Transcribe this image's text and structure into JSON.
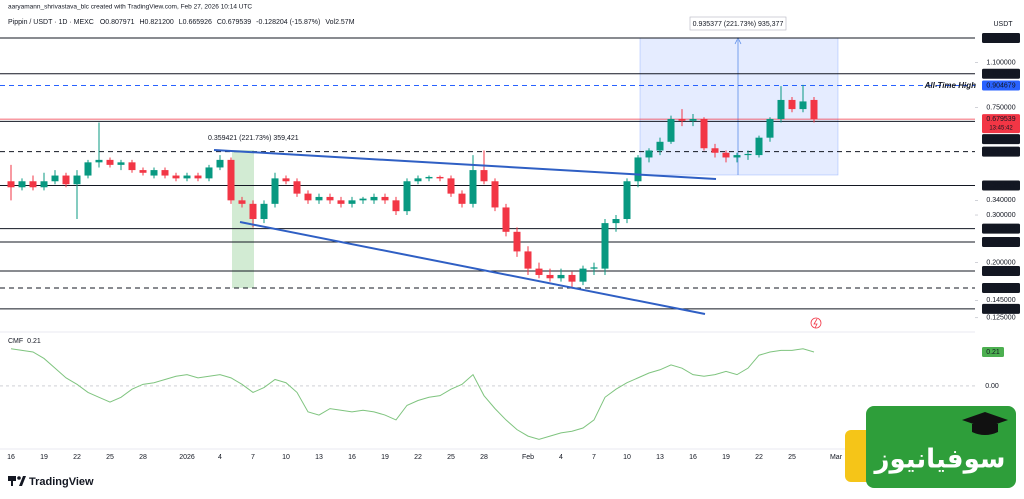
{
  "page": {
    "branding": "TradingView",
    "watermark": "سوفیانیوز"
  },
  "chart_data": {
    "type": "candlestick",
    "attribution": "aaryamann_shrivastava_blc created with TradingView.com, Feb 27, 2026 10:14 UTC",
    "symbol": "Pippin / USDT · 1D · MEXC",
    "legend_ohlc": [
      "O0.807971",
      "H0.821200",
      "L0.665926",
      "C0.679539",
      "-0.128204 (-15.87%)",
      "Vol2.57M"
    ],
    "currency": "USDT",
    "log_scale": true,
    "grid": false,
    "up_color": "#089981",
    "down_color": "#f23645",
    "categories": [
      "16",
      null,
      null,
      "19",
      null,
      null,
      "22",
      null,
      null,
      "25",
      null,
      null,
      "28",
      null,
      null,
      null,
      "2026",
      null,
      null,
      "4",
      null,
      null,
      "7",
      null,
      null,
      "10",
      null,
      null,
      "13",
      null,
      null,
      "16",
      null,
      null,
      "19",
      null,
      null,
      "22",
      null,
      null,
      "25",
      null,
      null,
      "28",
      null,
      null,
      null,
      "Feb",
      null,
      null,
      "4",
      null,
      null,
      "7",
      null,
      null,
      "10",
      null,
      null,
      "13",
      null,
      null,
      "16",
      null,
      null,
      "19",
      null,
      null,
      "22",
      null,
      null,
      "25",
      null,
      null,
      null,
      "Mar"
    ],
    "open": [
      0.4,
      0.38,
      0.4,
      0.38,
      0.4,
      0.42,
      0.39,
      0.42,
      0.47,
      0.48,
      0.46,
      0.47,
      0.44,
      0.42,
      0.44,
      0.42,
      0.41,
      0.42,
      0.41,
      0.45,
      0.48,
      0.34,
      0.33,
      0.29,
      0.33,
      0.41,
      0.4,
      0.36,
      0.34,
      0.35,
      0.34,
      0.33,
      0.34,
      0.34,
      0.35,
      0.34,
      0.31,
      0.4,
      0.41,
      0.415,
      0.41,
      0.36,
      0.33,
      0.44,
      0.4,
      0.32,
      0.26,
      0.22,
      0.19,
      0.18,
      0.175,
      0.18,
      0.17,
      0.19,
      0.19,
      0.28,
      0.29,
      0.4,
      0.49,
      0.52,
      0.56,
      0.68,
      0.67,
      0.68,
      0.53,
      0.51,
      0.49,
      0.5,
      0.5,
      0.58,
      0.68,
      0.8,
      0.74,
      0.8,
      null,
      null
    ],
    "high": [
      0.46,
      0.41,
      0.42,
      0.43,
      0.44,
      0.43,
      0.44,
      0.48,
      0.66,
      0.49,
      0.48,
      0.48,
      0.45,
      0.45,
      0.45,
      0.43,
      0.43,
      0.43,
      0.46,
      0.5,
      0.49,
      0.35,
      0.34,
      0.34,
      0.43,
      0.42,
      0.41,
      0.37,
      0.36,
      0.36,
      0.35,
      0.35,
      0.35,
      0.36,
      0.36,
      0.35,
      0.41,
      0.42,
      0.42,
      0.42,
      0.42,
      0.37,
      0.5,
      0.52,
      0.41,
      0.33,
      0.27,
      0.23,
      0.2,
      0.19,
      0.19,
      0.185,
      0.195,
      0.2,
      0.29,
      0.3,
      0.41,
      0.5,
      0.53,
      0.58,
      0.7,
      0.74,
      0.71,
      0.69,
      0.55,
      0.52,
      0.51,
      0.52,
      0.59,
      0.69,
      0.9,
      0.82,
      0.91,
      0.82,
      null,
      null
    ],
    "low": [
      0.34,
      0.37,
      0.37,
      0.37,
      0.39,
      0.38,
      0.29,
      0.41,
      0.45,
      0.45,
      0.44,
      0.43,
      0.42,
      0.41,
      0.41,
      0.4,
      0.4,
      0.4,
      0.4,
      0.44,
      0.33,
      0.32,
      0.27,
      0.28,
      0.32,
      0.39,
      0.35,
      0.33,
      0.33,
      0.33,
      0.32,
      0.32,
      0.33,
      0.33,
      0.33,
      0.3,
      0.3,
      0.39,
      0.4,
      0.4,
      0.35,
      0.32,
      0.32,
      0.39,
      0.31,
      0.25,
      0.21,
      0.18,
      0.175,
      0.17,
      0.17,
      0.16,
      0.165,
      0.18,
      0.18,
      0.26,
      0.28,
      0.38,
      0.47,
      0.5,
      0.55,
      0.64,
      0.64,
      0.52,
      0.49,
      0.47,
      0.47,
      0.48,
      0.49,
      0.56,
      0.66,
      0.72,
      0.72,
      0.66,
      null,
      null
    ],
    "close": [
      0.38,
      0.4,
      0.38,
      0.4,
      0.42,
      0.39,
      0.42,
      0.47,
      0.48,
      0.46,
      0.47,
      0.44,
      0.43,
      0.44,
      0.42,
      0.41,
      0.42,
      0.41,
      0.45,
      0.48,
      0.34,
      0.33,
      0.29,
      0.33,
      0.41,
      0.4,
      0.36,
      0.34,
      0.35,
      0.34,
      0.33,
      0.34,
      0.345,
      0.35,
      0.34,
      0.31,
      0.4,
      0.41,
      0.415,
      0.41,
      0.36,
      0.33,
      0.44,
      0.4,
      0.32,
      0.26,
      0.22,
      0.19,
      0.18,
      0.175,
      0.18,
      0.17,
      0.19,
      0.192,
      0.28,
      0.29,
      0.4,
      0.49,
      0.52,
      0.56,
      0.68,
      0.67,
      0.68,
      0.53,
      0.51,
      0.49,
      0.5,
      0.505,
      0.58,
      0.68,
      0.8,
      0.74,
      0.79,
      0.68,
      null,
      null
    ],
    "ylim": [
      0.1126,
      1.452
    ],
    "yticks": [
      {
        "value": 1.1,
        "label": "1.100000"
      },
      {
        "value": 0.75,
        "label": "0.750000"
      },
      {
        "value": 0.34,
        "label": "0.340000"
      },
      {
        "value": 0.3,
        "label": "0.300000"
      },
      {
        "value": 0.2,
        "label": "0.200000"
      },
      {
        "value": 0.145,
        "label": "0.145000"
      },
      {
        "value": 0.125,
        "label": "0.125000"
      }
    ],
    "levels": [
      {
        "value": 1.357,
        "label": "1.357000",
        "color": "#131722",
        "dashed": false
      },
      {
        "value": 1.0,
        "label": "1.000000",
        "color": "#131722",
        "dashed": false
      },
      {
        "value": 0.904679,
        "label": "0.904679",
        "color": "#2962ff",
        "dashed": true
      },
      {
        "value": 0.679539,
        "label": "0.679539",
        "color": "#f23645",
        "dashed": false
      },
      {
        "value": 0.666529,
        "label": "0.666529",
        "color": "#131722",
        "dashed": false
      },
      {
        "value": 0.514891,
        "label": "0.514891",
        "color": "#131722",
        "dashed": true
      },
      {
        "value": 0.385881,
        "label": "0.385881",
        "color": "#131722",
        "dashed": false
      },
      {
        "value": 0.267124,
        "label": "0.267124",
        "color": "#131722",
        "dashed": false
      },
      {
        "value": 0.238353,
        "label": "0.238353",
        "color": "#131722",
        "dashed": false
      },
      {
        "value": 0.186108,
        "label": "0.186108",
        "color": "#131722",
        "dashed": false
      },
      {
        "value": 0.16108,
        "label": "0.161080",
        "color": "#131722",
        "dashed": true
      },
      {
        "value": 0.134743,
        "label": "0.134743",
        "color": "#131722",
        "dashed": false
      }
    ],
    "countdown": "13:45:42",
    "ath_label": "All-Time High",
    "measure_left": "0.359421 (221.73%) 359,421",
    "measure_right": "0.935377 (221.73%) 935,377",
    "cmf": {
      "name": "CMF",
      "current": 0.21,
      "color": "#7fc47f",
      "ylim": [
        -0.365,
        0.315
      ],
      "yticks": [
        {
          "value": 0,
          "label": "0.00"
        }
      ],
      "values": [
        0.23,
        0.22,
        0.21,
        0.17,
        0.11,
        0.05,
        0.01,
        -0.04,
        -0.07,
        -0.1,
        -0.07,
        -0.02,
        0.01,
        0.02,
        0.04,
        0.06,
        0.07,
        0.05,
        0.06,
        0.07,
        0.05,
        0.01,
        -0.04,
        -0.01,
        0.04,
        0.02,
        -0.04,
        -0.16,
        -0.18,
        -0.14,
        -0.15,
        -0.16,
        -0.15,
        -0.16,
        -0.18,
        -0.21,
        -0.12,
        -0.09,
        -0.07,
        -0.06,
        -0.02,
        0.01,
        0.07,
        -0.06,
        -0.14,
        -0.21,
        -0.27,
        -0.31,
        -0.33,
        -0.31,
        -0.29,
        -0.28,
        -0.26,
        -0.21,
        -0.07,
        -0.02,
        0.02,
        0.05,
        0.08,
        0.1,
        0.13,
        0.11,
        0.07,
        0.06,
        0.07,
        0.09,
        0.07,
        0.11,
        0.19,
        0.21,
        0.22,
        0.22,
        0.23,
        0.21,
        null,
        null
      ]
    }
  }
}
